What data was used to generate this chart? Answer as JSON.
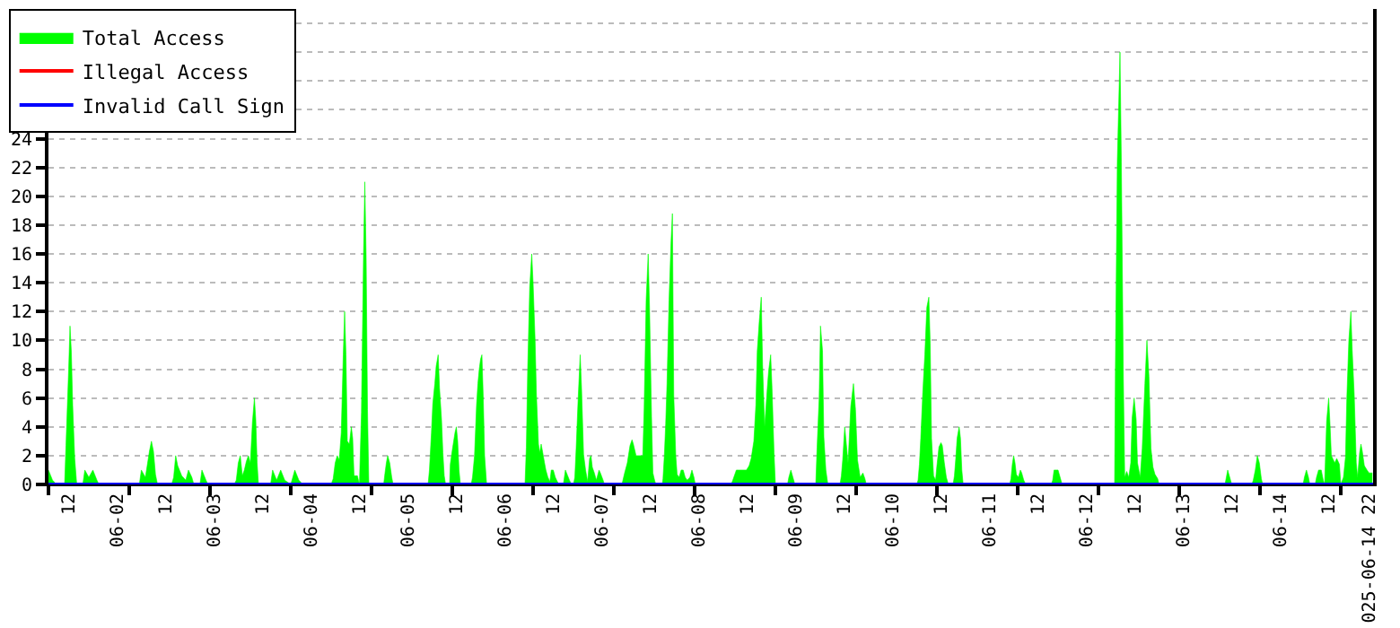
{
  "chart_data": {
    "type": "area",
    "grid": "y",
    "legend": "top left",
    "marker": "none",
    "line_style": "solid",
    "xlim": [
      "--06-01T07:00",
      "--06-14T23:00"
    ],
    "ylim": [
      0,
      33
    ],
    "yticks": [
      0,
      2,
      4,
      6,
      8,
      10,
      12,
      14,
      16,
      18,
      20,
      22,
      24,
      {
        "value": 26,
        "label": null
      },
      {
        "value": 28,
        "label": null
      },
      {
        "value": 30,
        "label": null
      },
      {
        "value": 32,
        "label": null
      }
    ],
    "xticks": [
      {
        "value": "--06-01T12:00",
        "label": "12"
      },
      {
        "value": "--06-02T00:00",
        "label": "06-02"
      },
      {
        "value": "--06-02T12:00",
        "label": "12"
      },
      {
        "value": "--06-03T00:00",
        "label": "06-03"
      },
      {
        "value": "--06-03T12:00",
        "label": "12"
      },
      {
        "value": "--06-04T00:00",
        "label": "06-04"
      },
      {
        "value": "--06-04T12:00",
        "label": "12"
      },
      {
        "value": "--06-05T00:00",
        "label": "06-05"
      },
      {
        "value": "--06-05T12:00",
        "label": "12"
      },
      {
        "value": "--06-06T00:00",
        "label": "06-06"
      },
      {
        "value": "--06-06T12:00",
        "label": "12"
      },
      {
        "value": "--06-07T00:00",
        "label": "06-07"
      },
      {
        "value": "--06-07T12:00",
        "label": "12"
      },
      {
        "value": "--06-08T00:00",
        "label": "06-08"
      },
      {
        "value": "--06-08T12:00",
        "label": "12"
      },
      {
        "value": "--06-09T00:00",
        "label": "06-09"
      },
      {
        "value": "--06-09T12:00",
        "label": "12"
      },
      {
        "value": "--06-10T00:00",
        "label": "06-10"
      },
      {
        "value": "--06-10T12:00",
        "label": "12"
      },
      {
        "value": "--06-11T00:00",
        "label": "06-11"
      },
      {
        "value": "--06-11T12:00",
        "label": "12"
      },
      {
        "value": "--06-12T00:00",
        "label": "06-12"
      },
      {
        "value": "--06-12T12:00",
        "label": "12"
      },
      {
        "value": "--06-13T00:00",
        "label": "06-13"
      },
      {
        "value": "--06-13T12:00",
        "label": "12"
      },
      {
        "value": "--06-14T00:00",
        "label": "06-14"
      },
      {
        "value": "--06-14T12:00",
        "label": "12"
      },
      {
        "value": "--06-14T22:00",
        "label": "025-06-14 22"
      },
      {
        "value": "--06-01T07:00",
        "label": null
      },
      {
        "value": "--06-02T03:00",
        "label": null
      },
      {
        "value": "--06-02T23:00",
        "label": null
      },
      {
        "value": "--06-03T19:00",
        "label": null
      },
      {
        "value": "--06-04T15:00",
        "label": null
      },
      {
        "value": "--06-05T11:00",
        "label": null
      },
      {
        "value": "--06-06T07:00",
        "label": null
      },
      {
        "value": "--06-07T03:00",
        "label": null
      },
      {
        "value": "--06-07T23:00",
        "label": null
      },
      {
        "value": "--06-08T19:00",
        "label": null
      },
      {
        "value": "--06-09T15:00",
        "label": null
      },
      {
        "value": "--06-10T11:00",
        "label": null
      },
      {
        "value": "--06-11T07:00",
        "label": null
      },
      {
        "value": "--06-12T03:00",
        "label": null
      },
      {
        "value": "--06-12T23:00",
        "label": null
      },
      {
        "value": "--06-13T19:00",
        "label": null
      },
      {
        "value": "--06-14T15:00",
        "label": null
      }
    ],
    "series": [
      {
        "name": "Total Access",
        "color": "#00ff00",
        "x": [
          "--06-01T07:00",
          "--06-01T08:00",
          "--06-01T09:00",
          "--06-01T11:00",
          "--06-01T11:20",
          "--06-01T12:00",
          "--06-01T12:20",
          "--06-01T12:40",
          "--06-01T13:00",
          "--06-01T13:30",
          "--06-01T14:00",
          "--06-01T15:30",
          "--06-01T16:00",
          "--06-01T17:00",
          "--06-01T18:00",
          "--06-01T19:00",
          "--06-01T19:30",
          "--06-02T05:30",
          "--06-02T06:00",
          "--06-02T07:00",
          "--06-02T08:00",
          "--06-02T08:30",
          "--06-02T09:00",
          "--06-02T09:30",
          "--06-02T10:00",
          "--06-02T13:30",
          "--06-02T14:00",
          "--06-02T14:30",
          "--06-02T15:00",
          "--06-02T16:00",
          "--06-02T17:00",
          "--06-02T17:40",
          "--06-02T18:30",
          "--06-02T19:00",
          "--06-02T20:30",
          "--06-02T21:00",
          "--06-02T22:00",
          "--06-02T22:30",
          "--06-03T05:00",
          "--06-03T05:30",
          "--06-03T06:00",
          "--06-03T06:30",
          "--06-03T07:00",
          "--06-03T07:30",
          "--06-03T08:00",
          "--06-03T08:30",
          "--06-03T09:00",
          "--06-03T09:30",
          "--06-03T10:00",
          "--06-03T10:20",
          "--06-03T10:40",
          "--06-03T11:00",
          "--06-03T14:00",
          "--06-03T14:30",
          "--06-03T15:30",
          "--06-03T16:30",
          "--06-03T17:30",
          "--06-03T19:00",
          "--06-03T20:00",
          "--06-03T21:00",
          "--06-03T22:00",
          "--06-04T05:00",
          "--06-04T05:30",
          "--06-04T06:00",
          "--06-04T06:30",
          "--06-04T07:00",
          "--06-04T07:30",
          "--06-04T08:00",
          "--06-04T08:20",
          "--06-04T08:40",
          "--06-04T09:00",
          "--06-04T09:30",
          "--06-04T10:00",
          "--06-04T10:20",
          "--06-04T10:40",
          "--06-04T11:30",
          "--06-04T12:00",
          "--06-04T12:30",
          "--06-04T13:00",
          "--06-04T13:20",
          "--06-04T13:40",
          "--06-04T14:00",
          "--06-04T14:20",
          "--06-04T18:00",
          "--06-04T18:20",
          "--06-04T18:40",
          "--06-04T19:00",
          "--06-04T19:30",
          "--06-04T20:00",
          "--06-04T20:20",
          "--06-05T05:00",
          "--06-05T05:20",
          "--06-05T05:50",
          "--06-05T06:10",
          "--06-05T06:40",
          "--06-05T07:00",
          "--06-05T07:30",
          "--06-05T07:50",
          "--06-05T08:20",
          "--06-05T08:40",
          "--06-05T09:00",
          "--06-05T09:20",
          "--06-05T10:20",
          "--06-05T10:30",
          "--06-05T11:00",
          "--06-05T11:20",
          "--06-05T11:40",
          "--06-05T12:00",
          "--06-05T12:20",
          "--06-05T12:40",
          "--06-05T13:00",
          "--06-05T15:40",
          "--06-05T16:00",
          "--06-05T16:30",
          "--06-05T17:00",
          "--06-05T17:20",
          "--06-05T17:40",
          "--06-05T18:00",
          "--06-05T18:20",
          "--06-05T18:40",
          "--06-05T19:00",
          "--06-05T19:30",
          "--06-06T05:00",
          "--06-06T05:20",
          "--06-06T05:40",
          "--06-06T06:10",
          "--06-06T06:40",
          "--06-06T07:00",
          "--06-06T07:30",
          "--06-06T07:50",
          "--06-06T08:20",
          "--06-06T08:40",
          "--06-06T09:00",
          "--06-06T09:20",
          "--06-06T09:50",
          "--06-06T10:10",
          "--06-06T10:40",
          "--06-06T11:10",
          "--06-06T11:30",
          "--06-06T12:00",
          "--06-06T12:30",
          "--06-06T13:00",
          "--06-06T13:30",
          "--06-06T14:30",
          "--06-06T15:00",
          "--06-06T16:00",
          "--06-06T16:30",
          "--06-06T17:00",
          "--06-06T17:20",
          "--06-06T17:40",
          "--06-06T18:10",
          "--06-06T18:40",
          "--06-06T19:00",
          "--06-06T19:30",
          "--06-06T20:00",
          "--06-06T20:30",
          "--06-06T21:00",
          "--06-06T21:20",
          "--06-06T21:40",
          "--06-06T22:10",
          "--06-06T22:40",
          "--06-06T23:20",
          "--06-06T23:40",
          "--06-07T00:20",
          "--06-07T00:40",
          "--06-07T05:00",
          "--06-07T05:10",
          "--06-07T05:40",
          "--06-07T06:20",
          "--06-07T07:00",
          "--06-07T07:30",
          "--06-07T07:50",
          "--06-07T08:30",
          "--06-07T09:00",
          "--06-07T09:40",
          "--06-07T10:10",
          "--06-07T10:30",
          "--06-07T11:00",
          "--06-07T11:30",
          "--06-07T11:50",
          "--06-07T12:20",
          "--06-07T12:40",
          "--06-07T13:10",
          "--06-07T13:30",
          "--06-07T15:00",
          "--06-07T15:10",
          "--06-07T15:30",
          "--06-07T15:50",
          "--06-07T16:10",
          "--06-07T16:40",
          "--06-07T17:10",
          "--06-07T17:30",
          "--06-07T17:50",
          "--06-07T18:20",
          "--06-07T18:40",
          "--06-07T19:10",
          "--06-07T19:40",
          "--06-07T20:10",
          "--06-07T20:40",
          "--06-07T21:10",
          "--06-07T21:50",
          "--06-07T22:20",
          "--06-07T22:50",
          "--06-07T23:10",
          "--06-08T08:00",
          "--06-08T08:20",
          "--06-08T08:50",
          "--06-08T09:20",
          "--06-08T10:00",
          "--06-08T11:00",
          "--06-08T11:50",
          "--06-08T12:30",
          "--06-08T13:00",
          "--06-08T13:40",
          "--06-08T14:10",
          "--06-08T14:30",
          "--06-08T15:00",
          "--06-08T15:30",
          "--06-08T15:50",
          "--06-08T16:20",
          "--06-08T17:00",
          "--06-08T17:20",
          "--06-08T17:50",
          "--06-08T18:10",
          "--06-08T18:40",
          "--06-08T19:00",
          "--06-08T22:00",
          "--06-08T22:20",
          "--06-08T22:50",
          "--06-08T23:20",
          "--06-08T23:50",
          "--06-09T05:00",
          "--06-09T05:20",
          "--06-09T05:50",
          "--06-09T06:10",
          "--06-09T06:40",
          "--06-09T07:00",
          "--06-09T07:30",
          "--06-09T08:00",
          "--06-09T11:00",
          "--06-09T11:20",
          "--06-09T11:40",
          "--06-09T12:10",
          "--06-09T12:30",
          "--06-09T13:00",
          "--06-09T13:40",
          "--06-09T14:20",
          "--06-09T14:50",
          "--06-09T15:20",
          "--06-09T16:00",
          "--06-09T16:40",
          "--06-09T17:10",
          "--06-09T17:30",
          "--06-10T06:00",
          "--06-10T06:20",
          "--06-10T06:40",
          "--06-10T07:00",
          "--06-10T07:30",
          "--06-10T08:00",
          "--06-10T08:30",
          "--06-10T09:00",
          "--06-10T09:20",
          "--06-10T09:40",
          "--06-10T10:10",
          "--06-10T10:40",
          "--06-10T11:00",
          "--06-10T11:30",
          "--06-10T12:00",
          "--06-10T12:20",
          "--06-10T12:50",
          "--06-10T13:20",
          "--06-10T13:50",
          "--06-10T15:00",
          "--06-10T15:20",
          "--06-10T15:40",
          "--06-10T16:00",
          "--06-10T16:30",
          "--06-10T16:50",
          "--06-10T17:10",
          "--06-10T17:30",
          "--06-11T05:00",
          "--06-11T05:20",
          "--06-11T05:40",
          "--06-11T06:00",
          "--06-11T06:20",
          "--06-11T06:40",
          "--06-11T07:10",
          "--06-11T07:40",
          "--06-11T08:00",
          "--06-11T08:30",
          "--06-11T09:00",
          "--06-11T15:20",
          "--06-11T15:40",
          "--06-11T16:00",
          "--06-11T17:00",
          "--06-11T17:30",
          "--06-11T18:00",
          "--06-12T07:00",
          "--06-12T07:10",
          "--06-12T07:40",
          "--06-12T08:20",
          "--06-12T08:40",
          "--06-12T09:10",
          "--06-12T09:30",
          "--06-12T10:00",
          "--06-12T10:30",
          "--06-12T11:00",
          "--06-12T11:20",
          "--06-12T11:50",
          "--06-12T12:20",
          "--06-12T12:40",
          "--06-12T13:20",
          "--06-12T13:50",
          "--06-12T14:30",
          "--06-12T15:00",
          "--06-12T15:30",
          "--06-12T16:00",
          "--06-12T16:30",
          "--06-12T17:00",
          "--06-12T17:40",
          "--06-12T18:00",
          "--06-13T10:20",
          "--06-13T10:40",
          "--06-13T11:00",
          "--06-13T11:30",
          "--06-13T12:00",
          "--06-13T17:00",
          "--06-13T17:20",
          "--06-13T17:50",
          "--06-13T18:20",
          "--06-13T18:50",
          "--06-13T19:20",
          "--06-13T19:40",
          "--06-14T05:40",
          "--06-14T06:00",
          "--06-14T06:30",
          "--06-14T07:00",
          "--06-14T07:20",
          "--06-14T08:40",
          "--06-14T09:00",
          "--06-14T09:30",
          "--06-14T10:10",
          "--06-14T10:40",
          "--06-14T11:00",
          "--06-14T11:10",
          "--06-14T11:30",
          "--06-14T12:00",
          "--06-14T12:20",
          "--06-14T12:40",
          "--06-14T13:00",
          "--06-14T13:30",
          "--06-14T14:00",
          "--06-14T14:40",
          "--06-14T15:00",
          "--06-14T15:40",
          "--06-14T16:10",
          "--06-14T16:30",
          "--06-14T17:00",
          "--06-14T17:30",
          "--06-14T17:50",
          "--06-14T18:20",
          "--06-14T18:50",
          "--06-14T19:10",
          "--06-14T19:40",
          "--06-14T20:00",
          "--06-14T20:20",
          "--06-14T20:50",
          "--06-14T21:30",
          "--06-14T22:00",
          "--06-14T22:50"
        ],
        "values": [
          1,
          0.3,
          0,
          0,
          2.7,
          8,
          11,
          9.2,
          5.5,
          1.8,
          0,
          0,
          1,
          0.5,
          1,
          0.3,
          0,
          0,
          1,
          0.5,
          2.3,
          3,
          2.3,
          0.7,
          0,
          0,
          0.5,
          2,
          1.3,
          0.6,
          0.3,
          1,
          0.5,
          0,
          0,
          1,
          0.3,
          0,
          0,
          0.3,
          1.5,
          2,
          0.6,
          1,
          1.6,
          2,
          1.5,
          4.3,
          6,
          4.5,
          1.5,
          0,
          0,
          1,
          0.3,
          1,
          0.3,
          0,
          1,
          0.3,
          0,
          0,
          0.4,
          1.5,
          2,
          1.7,
          3.6,
          9,
          12,
          9,
          3,
          2.8,
          4,
          3.2,
          0.6,
          0.6,
          0,
          5,
          15.7,
          21,
          15.7,
          5.2,
          0,
          0,
          0.8,
          1.5,
          2,
          1.5,
          0.5,
          0,
          0,
          1,
          3.6,
          5.6,
          7,
          8.2,
          9,
          6.7,
          4.5,
          2.2,
          0.6,
          0,
          0,
          1.4,
          2.4,
          3,
          3.6,
          4,
          3,
          1,
          0,
          0,
          0.5,
          2,
          5.5,
          7,
          8,
          8.7,
          9,
          6,
          2,
          0,
          0,
          2.6,
          8,
          13.7,
          16,
          14,
          10,
          6.2,
          2.8,
          2.2,
          2.8,
          2.3,
          1.5,
          1,
          0.5,
          0.2,
          1,
          1,
          0.5,
          0.2,
          0,
          0,
          1,
          0.3,
          0,
          0,
          0.5,
          2.5,
          6,
          9,
          6.7,
          2.1,
          1,
          0.2,
          1.8,
          2,
          1.2,
          0.8,
          0.3,
          1,
          0.8,
          0.3,
          0,
          0,
          0.2,
          0.8,
          1.5,
          2.7,
          3.1,
          2.8,
          2,
          2,
          2,
          2,
          5.3,
          12.8,
          16,
          12.3,
          4.7,
          0.8,
          0.2,
          0,
          0,
          0.4,
          2,
          4.2,
          7,
          12.8,
          16.9,
          18.8,
          6.2,
          2,
          0.7,
          0.5,
          1,
          1,
          0.5,
          0.3,
          0.5,
          1,
          0.5,
          0,
          0,
          0.2,
          0.6,
          1,
          1,
          1,
          1,
          1.3,
          1.8,
          3,
          5.5,
          9.2,
          11.3,
          13,
          8.3,
          4,
          6.7,
          7.9,
          9,
          6.7,
          2.2,
          0,
          0,
          0.5,
          1,
          0.5,
          0,
          0,
          2.6,
          6,
          11,
          9.3,
          3.3,
          1,
          0,
          0,
          0.6,
          1.7,
          4,
          3,
          1.5,
          5.4,
          7,
          5.2,
          1.7,
          0.5,
          0.8,
          0.4,
          0,
          0,
          0.3,
          1.4,
          3.2,
          6.4,
          9,
          12.3,
          13,
          9.8,
          3.2,
          0.6,
          0.3,
          1.3,
          2.6,
          2.9,
          2.7,
          1.5,
          0.5,
          0,
          0,
          0.6,
          1.8,
          3.2,
          4,
          3.2,
          1,
          0,
          0,
          0.4,
          1.4,
          2,
          1.5,
          0.7,
          0.5,
          1,
          0.8,
          0.3,
          0,
          0,
          0.3,
          1,
          1,
          0.5,
          0,
          0,
          7.3,
          22.4,
          30,
          22.4,
          7.3,
          0.5,
          0.9,
          0.5,
          1.5,
          4.6,
          6,
          4.5,
          1.5,
          0.5,
          2.5,
          7,
          10,
          7.5,
          2.5,
          1.2,
          0.7,
          0.4,
          0,
          0,
          0.5,
          1,
          0.5,
          0,
          0,
          0.3,
          1,
          2,
          1.5,
          0.4,
          0,
          0,
          0.5,
          1,
          0.5,
          0,
          0,
          0.5,
          1,
          1,
          0.3,
          0,
          1.5,
          4.4,
          6,
          4.2,
          2,
          1.8,
          1.5,
          1.8,
          1.4,
          0,
          0.5,
          1.9,
          6,
          10,
          12,
          9.3,
          6.2,
          1.5,
          0.5,
          2.2,
          2.8,
          2.3,
          1.3,
          1,
          0.8,
          0.8
        ]
      },
      {
        "name": "Illegal Access",
        "color": "#ff0000",
        "type": "line"
      },
      {
        "name": "Invalid Call Sign",
        "color": "#0000ff",
        "type": "line",
        "x": [
          "--06-01T07:00",
          "--06-14T23:00"
        ],
        "values": [
          0,
          0
        ]
      }
    ]
  }
}
